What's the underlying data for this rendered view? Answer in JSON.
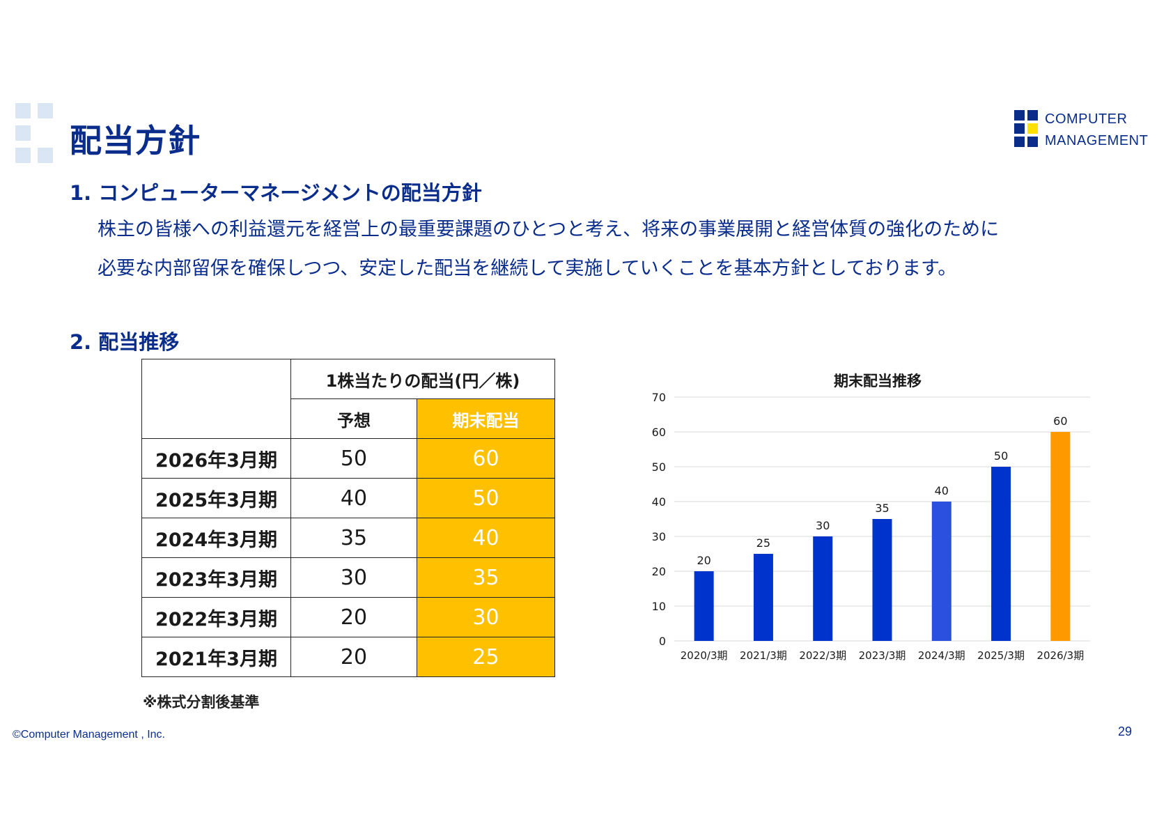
{
  "page": {
    "title": "配当方針",
    "logo_line1": "COMPUTER",
    "logo_line2": "MANAGEMENT",
    "copyright": "©Computer Management , Inc.",
    "page_number": "29",
    "brand_color": "#0a2d8c",
    "accent_color": "#ffc000"
  },
  "policy": {
    "heading": "1. コンピューターマネージメントの配当方針",
    "line1": "株主の皆様への利益還元を経営上の最重要課題のひとつと考え、将来の事業展開と経営体質の強化のために",
    "line2": "必要な内部留保を確保しつつ、安定した配当を継続して実施していくことを基本方針としております。"
  },
  "trend": {
    "heading": "2. 配当推移",
    "table": {
      "header_main": "1株当たりの配当(円／株)",
      "col_forecast": "予想",
      "col_actual": "期末配当",
      "rows": [
        {
          "year": "2026年3月期",
          "forecast": "50",
          "actual": "60"
        },
        {
          "year": "2025年3月期",
          "forecast": "40",
          "actual": "50"
        },
        {
          "year": "2024年3月期",
          "forecast": "35",
          "actual": "40"
        },
        {
          "year": "2023年3月期",
          "forecast": "30",
          "actual": "35"
        },
        {
          "year": "2022年3月期",
          "forecast": "20",
          "actual": "30"
        },
        {
          "year": "2021年3月期",
          "forecast": "20",
          "actual": "25"
        }
      ]
    },
    "note": "※株式分割後基準"
  },
  "chart_data": {
    "type": "bar",
    "title": "期末配当推移",
    "categories": [
      "2020/3期",
      "2021/3期",
      "2022/3期",
      "2023/3期",
      "2024/3期",
      "2025/3期",
      "2026/3期"
    ],
    "values": [
      20,
      25,
      30,
      35,
      40,
      50,
      60
    ],
    "bar_colors": [
      "#0033cc",
      "#0033cc",
      "#0033cc",
      "#0033cc",
      "#2b50e0",
      "#0033cc",
      "#ff9900"
    ],
    "ylim": [
      0,
      70
    ],
    "yticks": [
      0,
      10,
      20,
      30,
      40,
      50,
      60,
      70
    ],
    "grid": true,
    "data_labels": true
  }
}
